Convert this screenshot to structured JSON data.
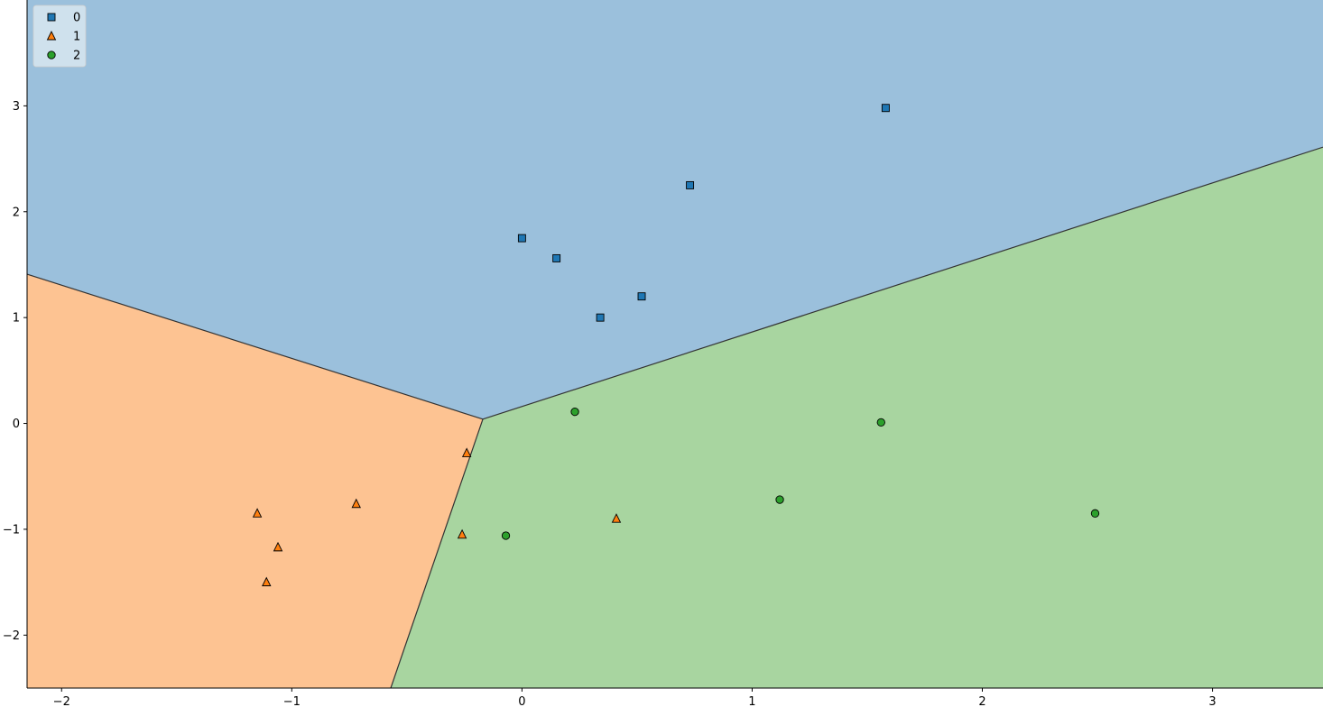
{
  "chart_data": {
    "type": "scatter",
    "title": "",
    "xlabel": "",
    "ylabel": "",
    "xlim": [
      -2.15,
      3.48
    ],
    "ylim": [
      -2.5,
      4.0
    ],
    "grid": false,
    "legend_placement": "top-left",
    "x_ticks": [
      {
        "value": -2,
        "label": "−2"
      },
      {
        "value": -1,
        "label": "−1"
      },
      {
        "value": 0,
        "label": "0"
      },
      {
        "value": 1,
        "label": "1"
      },
      {
        "value": 2,
        "label": "2"
      },
      {
        "value": 3,
        "label": "3"
      }
    ],
    "y_ticks": [
      {
        "value": -2,
        "label": "−2"
      },
      {
        "value": -1,
        "label": "−1"
      },
      {
        "value": 0,
        "label": "0"
      },
      {
        "value": 1,
        "label": "1"
      },
      {
        "value": 2,
        "label": "2"
      },
      {
        "value": 3,
        "label": "3"
      }
    ],
    "decision_regions": {
      "junction": [
        -0.17,
        0.04
      ],
      "boundary_0_1_end": [
        -2.15,
        1.41
      ],
      "boundary_0_2_end": [
        3.48,
        2.61
      ],
      "boundary_1_2_end": [
        -0.57,
        -2.5
      ],
      "region_colors": {
        "0": "#9bc0dc",
        "1": "#fdc392",
        "2": "#a8d5a0"
      }
    },
    "series": [
      {
        "name": "0",
        "marker": "square",
        "color": "#1f77b4",
        "x": [
          0.0,
          0.15,
          0.34,
          0.52,
          0.73,
          1.58
        ],
        "y": [
          1.75,
          1.56,
          1.0,
          1.2,
          2.25,
          2.98
        ]
      },
      {
        "name": "1",
        "marker": "triangle",
        "color": "#ff7f0e",
        "x": [
          -0.24,
          -0.72,
          -1.15,
          -1.06,
          -1.11,
          -0.26,
          0.41
        ],
        "y": [
          -0.28,
          -0.76,
          -0.85,
          -1.17,
          -1.5,
          -1.05,
          -0.9
        ]
      },
      {
        "name": "2",
        "marker": "circle",
        "color": "#2ca02c",
        "x": [
          0.23,
          1.56,
          1.12,
          2.49,
          -0.07
        ],
        "y": [
          0.11,
          0.01,
          -0.72,
          -0.85,
          -1.06
        ]
      }
    ]
  }
}
